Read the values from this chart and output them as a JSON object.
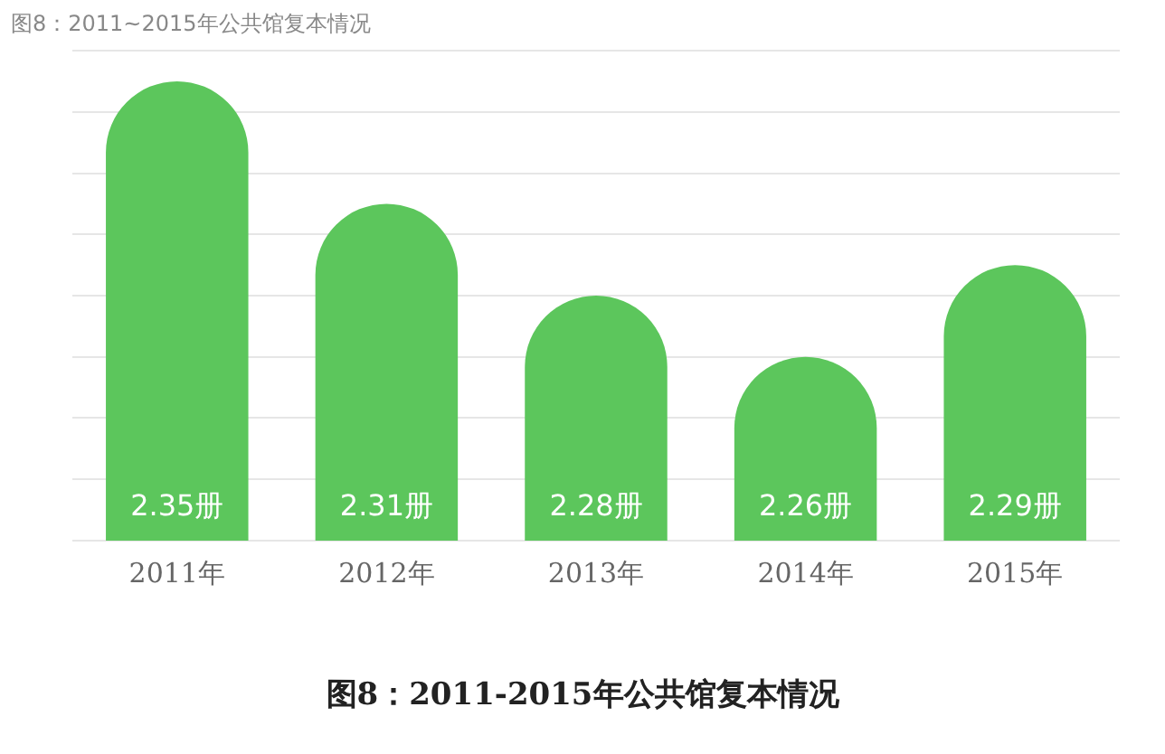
{
  "chart_data": {
    "type": "bar",
    "title": "图8：2011~2015年公共馆复本情况",
    "categories": [
      "2011年",
      "2012年",
      "2013年",
      "2014年",
      "2015年"
    ],
    "values": [
      2.35,
      2.31,
      2.28,
      2.26,
      2.29
    ],
    "value_labels": [
      "2.35册",
      "2.31册",
      "2.28册",
      "2.26册",
      "2.29册"
    ],
    "color": "#5cc65c",
    "ylim": [
      2.2,
      2.36
    ],
    "yticks": [
      {
        "value": 2.2,
        "label": null
      },
      {
        "value": 2.22,
        "label": null
      },
      {
        "value": 2.24,
        "label": null
      },
      {
        "value": 2.26,
        "label": null
      },
      {
        "value": 2.28,
        "label": null
      },
      {
        "value": 2.3,
        "label": null
      },
      {
        "value": 2.32,
        "label": null
      },
      {
        "value": 2.34,
        "label": null
      },
      {
        "value": 2.36,
        "label": null
      }
    ],
    "tick_labels": "x",
    "grid": "y",
    "annotations": [
      "图8：2011-2015年公共馆复本情况"
    ]
  }
}
